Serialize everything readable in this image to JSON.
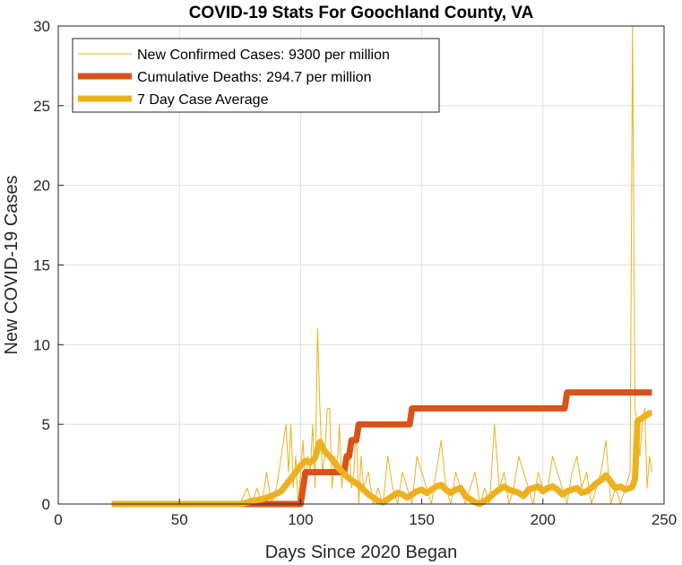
{
  "chart_data": {
    "type": "line",
    "title": "COVID-19 Stats For Goochland County, VA",
    "xlabel": "Days Since 2020 Began",
    "ylabel": "New COVID-19 Cases",
    "xlim": [
      0,
      250
    ],
    "ylim": [
      0,
      30
    ],
    "xticks": [
      0,
      50,
      100,
      150,
      200,
      250
    ],
    "yticks": [
      0,
      5,
      10,
      15,
      20,
      25,
      30
    ],
    "grid": true,
    "legend_position": "top-left",
    "series": [
      {
        "name": "New Confirmed Cases: 9300 per million",
        "color": "#EDB120",
        "style": "thin",
        "x": [
          22,
          40,
          60,
          75,
          78,
          80,
          82,
          84,
          86,
          88,
          90,
          92,
          94,
          95,
          96,
          97,
          98,
          99,
          100,
          101,
          102,
          103,
          104,
          105,
          106,
          107,
          108,
          109,
          110,
          111,
          112,
          113,
          114,
          115,
          116,
          117,
          118,
          119,
          120,
          121,
          122,
          123,
          124,
          125,
          126,
          128,
          130,
          132,
          134,
          136,
          138,
          140,
          142,
          144,
          146,
          148,
          150,
          152,
          154,
          156,
          158,
          160,
          162,
          164,
          166,
          168,
          170,
          172,
          174,
          176,
          178,
          180,
          182,
          184,
          186,
          188,
          190,
          192,
          194,
          196,
          198,
          200,
          202,
          204,
          206,
          208,
          210,
          212,
          214,
          216,
          218,
          220,
          222,
          224,
          226,
          228,
          230,
          232,
          234,
          236,
          237,
          238,
          239,
          240,
          241,
          242,
          243,
          244,
          245
        ],
        "y": [
          0,
          0,
          0,
          0,
          1,
          0,
          1,
          0,
          2,
          0,
          1,
          3,
          5,
          2,
          5,
          1,
          3,
          0,
          2,
          4,
          1,
          3,
          2,
          5,
          1,
          11,
          6,
          2,
          3,
          6,
          6,
          1,
          3,
          2,
          5,
          1,
          3,
          2,
          4,
          1,
          2,
          5,
          0,
          3,
          1,
          2,
          0,
          1,
          0,
          3,
          1,
          0,
          2,
          1,
          0,
          3,
          2,
          1,
          0,
          2,
          4,
          1,
          0,
          2,
          1,
          0,
          1,
          2,
          0,
          1,
          0,
          5,
          1,
          2,
          0,
          1,
          3,
          2,
          1,
          0,
          2,
          1,
          1,
          3,
          2,
          1,
          0,
          2,
          3,
          1,
          2,
          0,
          1,
          2,
          4,
          0,
          1,
          0,
          1,
          2,
          30,
          6,
          5,
          3,
          5,
          6,
          1,
          3,
          2
        ],
        "width": 1
      },
      {
        "name": "Cumulative Deaths: 294.7 per million",
        "color": "#D95319",
        "style": "thick",
        "x": [
          22,
          100,
          101,
          102,
          103,
          118,
          119,
          120,
          121,
          122,
          123,
          124,
          144,
          145,
          146,
          209,
          210,
          211,
          245
        ],
        "y": [
          0,
          0,
          1,
          2,
          2,
          2,
          3,
          3,
          4,
          4,
          4,
          5,
          5,
          5,
          6,
          6,
          7,
          7,
          7
        ],
        "width": 7
      },
      {
        "name": "7 Day Case Average",
        "color": "#EDB120",
        "style": "thick",
        "x": [
          22,
          76,
          80,
          84,
          88,
          92,
          96,
          98,
          100,
          102,
          104,
          106,
          108,
          110,
          112,
          114,
          116,
          118,
          120,
          122,
          124,
          126,
          128,
          130,
          132,
          134,
          136,
          138,
          140,
          142,
          144,
          146,
          148,
          150,
          152,
          154,
          156,
          158,
          160,
          162,
          164,
          166,
          168,
          170,
          172,
          174,
          176,
          178,
          180,
          182,
          184,
          186,
          188,
          190,
          192,
          194,
          196,
          198,
          200,
          202,
          204,
          206,
          208,
          210,
          212,
          214,
          216,
          218,
          220,
          222,
          224,
          226,
          228,
          230,
          232,
          234,
          236,
          237,
          238,
          239,
          240,
          241,
          242,
          243,
          244,
          245
        ],
        "y": [
          0,
          0,
          0.2,
          0.3,
          0.5,
          0.8,
          1.6,
          2.0,
          2.4,
          2.7,
          2.6,
          2.9,
          3.9,
          3.3,
          3.0,
          2.6,
          2.2,
          1.9,
          1.6,
          1.4,
          1.2,
          0.9,
          0.6,
          0.4,
          0.2,
          0.1,
          0.3,
          0.5,
          0.7,
          0.6,
          0.4,
          0.6,
          0.8,
          0.9,
          0.7,
          0.9,
          1.1,
          1.2,
          0.9,
          0.7,
          0.9,
          1.0,
          0.5,
          0.3,
          0.1,
          0.0,
          0.2,
          0.4,
          0.7,
          0.9,
          1.1,
          0.9,
          0.8,
          0.7,
          0.5,
          0.9,
          1.0,
          1.1,
          0.8,
          1.0,
          1.1,
          0.9,
          0.6,
          0.8,
          0.9,
          1.0,
          0.7,
          0.8,
          1.0,
          1.3,
          1.5,
          1.8,
          1.4,
          1.0,
          1.1,
          0.9,
          1.0,
          1.1,
          1.6,
          5.2,
          5.3,
          5.4,
          5.5,
          5.6,
          5.7,
          5.7
        ],
        "width": 7
      }
    ]
  }
}
